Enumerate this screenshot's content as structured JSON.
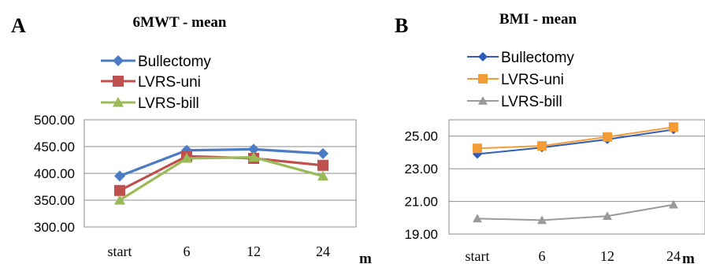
{
  "chart_data": [
    {
      "panel": "A",
      "type": "line",
      "title": "6MWT - mean",
      "x_unit": "m",
      "categories": [
        "start",
        "6",
        "12",
        "24"
      ],
      "ylim": [
        300,
        500
      ],
      "yticks": [
        "500.00",
        "450.00",
        "400.00",
        "350.00",
        "300.00"
      ],
      "grid": true,
      "legend": "top",
      "series": [
        {
          "name": "Bullectomy",
          "values": [
            395,
            443,
            445,
            437
          ],
          "color": "#4a7bc4",
          "marker": "diamond"
        },
        {
          "name": "LVRS-uni",
          "values": [
            368,
            432,
            428,
            415
          ],
          "color": "#c0504d",
          "marker": "square"
        },
        {
          "name": "LVRS-bill",
          "values": [
            350,
            428,
            430,
            395
          ],
          "color": "#9bbb59",
          "marker": "triangle"
        }
      ]
    },
    {
      "panel": "B",
      "type": "line",
      "title": "BMI - mean",
      "x_unit": "m",
      "categories": [
        "start",
        "6",
        "12",
        "24"
      ],
      "ylim": [
        19,
        26
      ],
      "yticks": [
        "25.00",
        "23.00",
        "21.00",
        "19.00"
      ],
      "grid": true,
      "legend": "top",
      "series": [
        {
          "name": "Bullectomy",
          "values": [
            23.9,
            24.3,
            24.8,
            25.4
          ],
          "color": "#2e5cb8",
          "marker": "diamond"
        },
        {
          "name": "LVRS-uni",
          "values": [
            24.25,
            24.4,
            24.95,
            25.55
          ],
          "color": "#f39c35",
          "marker": "square"
        },
        {
          "name": "LVRS-bill",
          "values": [
            19.95,
            19.85,
            20.1,
            20.8
          ],
          "color": "#9a9a9a",
          "marker": "triangle"
        }
      ]
    }
  ]
}
